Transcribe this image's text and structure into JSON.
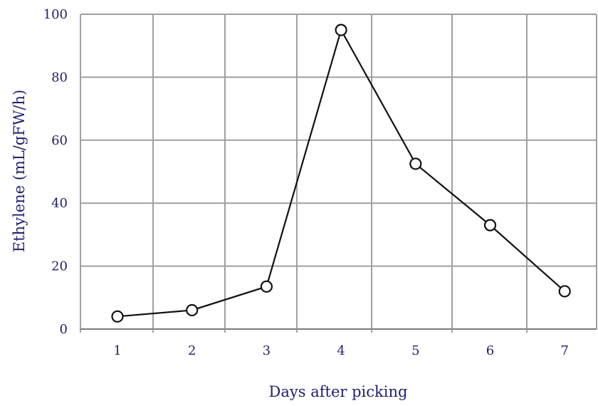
{
  "chart_data": {
    "type": "line",
    "title": "",
    "xlabel": "Days after picking",
    "ylabel": "Ethylene (mL/gFW/h)",
    "x": [
      1,
      2,
      3,
      4,
      5,
      6,
      7
    ],
    "series": [
      {
        "name": "",
        "values": [
          4,
          6,
          13.5,
          95,
          52.5,
          33,
          12
        ]
      }
    ],
    "ylim": [
      0,
      100
    ],
    "yticks": [
      0,
      20,
      40,
      60,
      80,
      100
    ],
    "xtick_labels": [
      "1",
      "2",
      "3",
      "4",
      "5",
      "6",
      "7"
    ],
    "ytick_labels": [
      "0",
      "20",
      "40",
      "60",
      "80",
      "100"
    ],
    "grid": true,
    "marker": "open-circle",
    "colors": {
      "line": "#111111",
      "grid": "#a0a0a0",
      "text": "#1f1f6e"
    }
  }
}
